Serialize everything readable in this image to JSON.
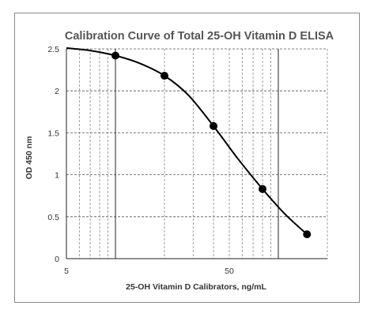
{
  "chart_data": {
    "type": "scatter",
    "title": "Calibration Curve of Total 25-OH Vitamin D ELISA",
    "xlabel": "25-OH Vitamin D Calibrators, ng/mL",
    "ylabel": "OD 450 nm",
    "x_scale": "log",
    "xlim": [
      5,
      200
    ],
    "ylim": [
      0,
      2.5
    ],
    "x_tick_labels": [
      "5",
      "50"
    ],
    "y_tick_labels": [
      "0",
      "0.5",
      "1",
      "1.5",
      "2",
      "2.5"
    ],
    "y_ticks": [
      0,
      0.5,
      1,
      1.5,
      2,
      2.5
    ],
    "grid": true,
    "series": [
      {
        "markers": "circle",
        "color": "#000000",
        "x": [
          10,
          20,
          40,
          80,
          150
        ],
        "y": [
          2.42,
          2.18,
          1.58,
          0.83,
          0.29
        ]
      }
    ],
    "fit_curve": {
      "color": "#000000",
      "x": [
        5,
        7,
        10,
        14,
        20,
        28,
        40,
        56,
        80,
        110,
        150
      ],
      "y": [
        2.51,
        2.48,
        2.42,
        2.33,
        2.18,
        1.95,
        1.58,
        1.2,
        0.83,
        0.53,
        0.29
      ]
    }
  }
}
